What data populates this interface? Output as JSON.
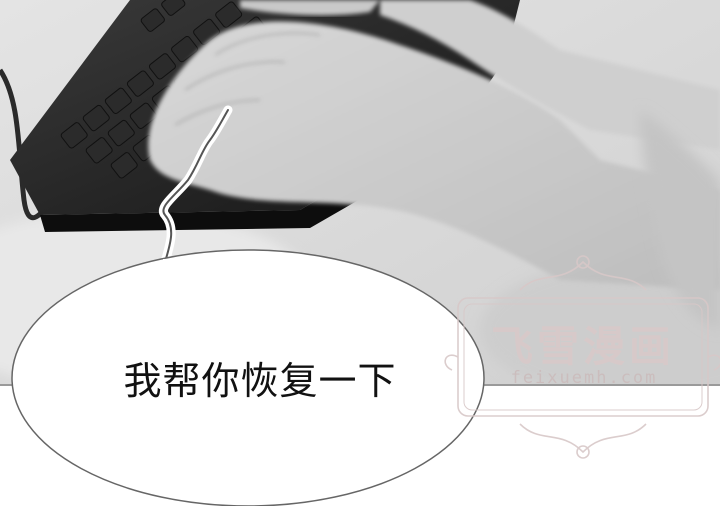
{
  "panel": {
    "speech_text": "我帮你恢复一下"
  },
  "watermark": {
    "title": "飞雪漫画",
    "url": "feixuemh.com",
    "color": "#d9c9c9"
  },
  "photo": {
    "subject": "hands-typing-on-keyboard"
  }
}
